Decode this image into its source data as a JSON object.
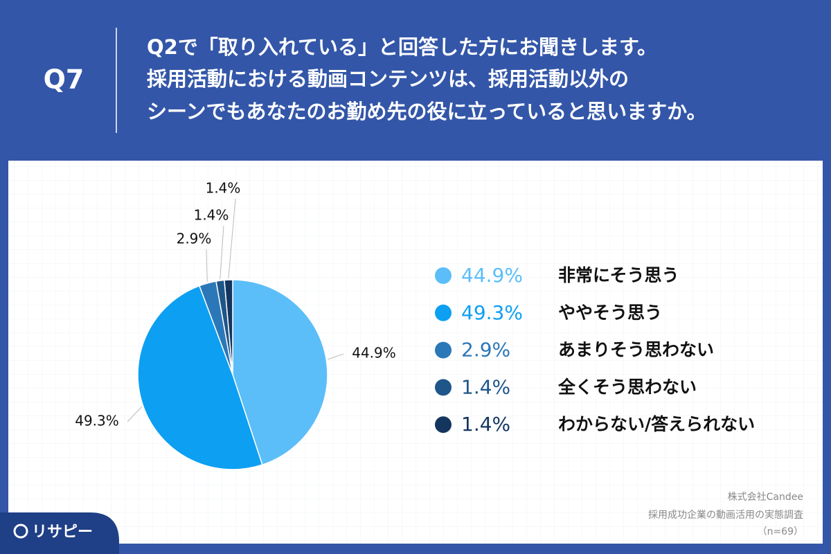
{
  "header": {
    "number": "Q7",
    "lines": [
      "Q2で「取り入れている」と回答した方にお聞きします。",
      "採用活動における動画コンテンツは、採用活動以外の",
      "シーンでもあなたのお勤め先の役に立っていると思いますか。"
    ]
  },
  "chart_data": {
    "type": "pie",
    "categories": [
      "非常にそう思う",
      "ややそう思う",
      "あまりそう思わない",
      "全くそう思わない",
      "わからない/答えられない"
    ],
    "values": [
      44.9,
      49.3,
      2.9,
      1.4,
      1.4
    ],
    "value_labels": [
      "44.9%",
      "49.3%",
      "2.9%",
      "1.4%",
      "1.4%"
    ],
    "colors": [
      "#5bbef9",
      "#0d9ff2",
      "#2b78b8",
      "#1f568a",
      "#14355e"
    ]
  },
  "source": [
    "株式会社Candee",
    "採用成功企業の動画活用の実態調査",
    "（n=69）"
  ],
  "logo": "リサピー"
}
